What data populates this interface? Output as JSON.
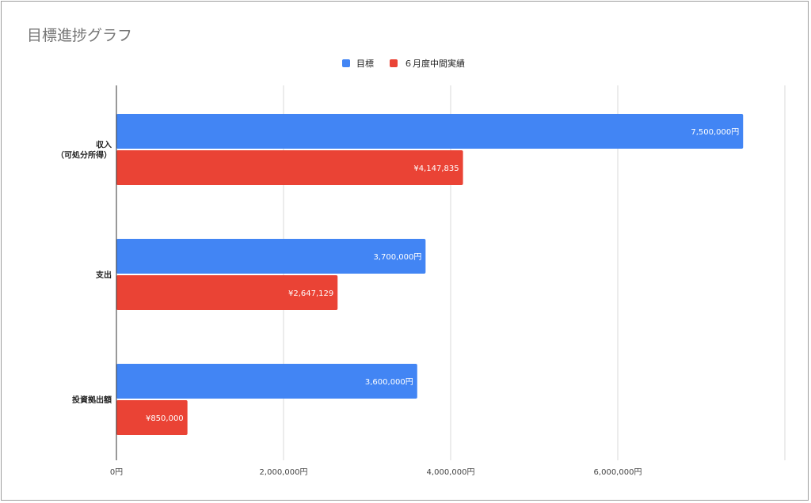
{
  "chart_data": {
    "type": "bar",
    "orientation": "horizontal",
    "title": "目標進捗グラフ",
    "categories": [
      "収入\n（可処分所得）",
      "支出",
      "投資拠出額"
    ],
    "series": [
      {
        "name": "目標",
        "color": "#4285f4",
        "values": [
          7500000,
          3700000,
          3600000
        ],
        "labels": [
          "7,500,000円",
          "3,700,000円",
          "3,600,000円"
        ]
      },
      {
        "name": "６月度中間実績",
        "color": "#ea4335",
        "values": [
          4147835,
          2647129,
          850000
        ],
        "labels": [
          "¥4,147,835",
          "¥2,647,129",
          "¥850,000"
        ]
      }
    ],
    "xlim": [
      0,
      8000000
    ],
    "xticks": [
      0,
      2000000,
      4000000,
      6000000,
      8000000
    ],
    "xtick_labels": [
      "0円",
      "2,000,000円",
      "4,000,000円",
      "6,000,000円",
      ""
    ],
    "grid": true,
    "legend": "top-center",
    "xlabel": "",
    "ylabel": ""
  }
}
